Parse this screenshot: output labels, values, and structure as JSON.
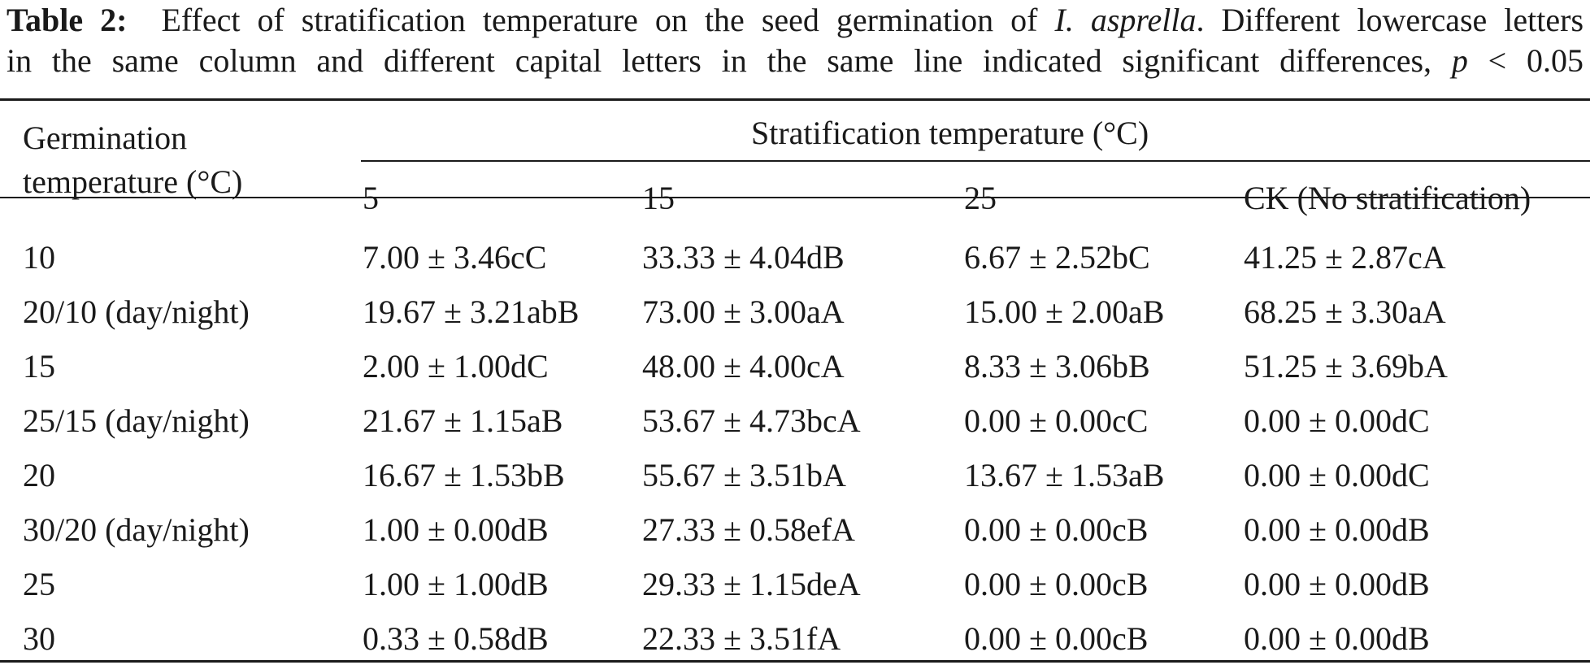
{
  "caption": {
    "label": "Table 2:",
    "text_before_species": "Effect of stratification temperature on the seed germination of",
    "species": "I. asprella",
    "text_after_species_line1": ". Different lowercase letters",
    "line2_main": "in the same column and different capital letters in the same line indicated significant differences,",
    "p_symbol": "p",
    "p_threshold": "< 0.05"
  },
  "table": {
    "header_germination": "Germination temperature (°C)",
    "header_germination_line1": "Germination",
    "header_germination_line2": "temperature (°C)",
    "header_stratification": "Stratification temperature (°C)",
    "sub_headers": [
      "5",
      "15",
      "25",
      "CK (No stratification)"
    ],
    "rows": [
      {
        "germ": "10",
        "v5": "7.00 ± 3.46cC",
        "v15": "33.33 ± 4.04dB",
        "v25": "6.67 ± 2.52bC",
        "ck": "41.25 ± 2.87cA"
      },
      {
        "germ": "20/10 (day/night)",
        "v5": "19.67 ± 3.21abB",
        "v15": "73.00 ± 3.00aA",
        "v25": "15.00 ± 2.00aB",
        "ck": "68.25 ± 3.30aA"
      },
      {
        "germ": "15",
        "v5": "2.00 ± 1.00dC",
        "v15": "48.00 ± 4.00cA",
        "v25": "8.33 ± 3.06bB",
        "ck": "51.25 ± 3.69bA"
      },
      {
        "germ": "25/15 (day/night)",
        "v5": "21.67 ± 1.15aB",
        "v15": "53.67 ± 4.73bcA",
        "v25": "0.00 ± 0.00cC",
        "ck": "0.00 ± 0.00dC"
      },
      {
        "germ": "20",
        "v5": "16.67 ± 1.53bB",
        "v15": "55.67 ± 3.51bA",
        "v25": "13.67 ± 1.53aB",
        "ck": "0.00 ± 0.00dC"
      },
      {
        "germ": "30/20 (day/night)",
        "v5": "1.00 ± 0.00dB",
        "v15": "27.33 ± 0.58efA",
        "v25": "0.00 ± 0.00cB",
        "ck": "0.00 ± 0.00dB"
      },
      {
        "germ": "25",
        "v5": "1.00 ± 1.00dB",
        "v15": "29.33 ± 1.15deA",
        "v25": "0.00 ± 0.00cB",
        "ck": "0.00 ± 0.00dB"
      },
      {
        "germ": "30",
        "v5": "0.33 ± 0.58dB",
        "v15": "22.33 ± 3.51fA",
        "v25": "0.00 ± 0.00cB",
        "ck": "0.00 ± 0.00dB"
      }
    ]
  }
}
